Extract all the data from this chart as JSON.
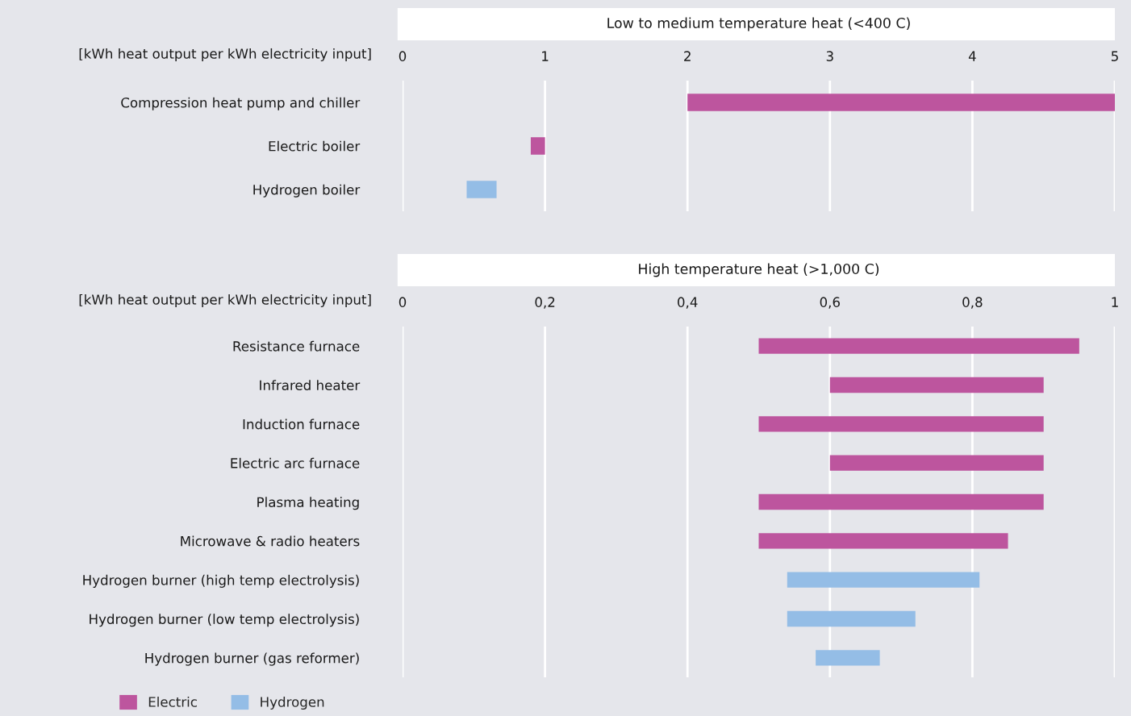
{
  "chart_data": [
    {
      "type": "bar",
      "orientation": "horizontal",
      "title": "Low to medium temperature heat (<400 C)",
      "xlabel": "[kWh heat output per kWh electricity input]",
      "categories": [
        "Compression heat pump and chiller",
        "Electric boiler",
        "Hydrogen boiler"
      ],
      "series": [
        {
          "name": "Electric",
          "color": "#bd559e",
          "values": [
            3,
            0.1,
            null
          ],
          "base": [
            2,
            0.9,
            null
          ]
        },
        {
          "name": "Hydrogen",
          "color": "#94bde6",
          "values": [
            null,
            null,
            0.21
          ],
          "base": [
            null,
            null,
            0.45
          ]
        }
      ],
      "xlim": [
        0,
        5
      ],
      "xticks": [
        0,
        1,
        2,
        3,
        4,
        5
      ],
      "grid": "x",
      "legend": "bottom left"
    },
    {
      "type": "bar",
      "orientation": "horizontal",
      "title": "High temperature heat (>1,000 C)",
      "xlabel": "[kWh heat output per kWh electricity input]",
      "categories": [
        "Resistance furnace",
        "Infrared heater",
        "Induction furnace",
        "Electric arc furnace",
        "Plasma heating",
        "Microwave & radio heaters",
        "Hydrogen burner (high temp electrolysis)",
        "Hydrogen burner (low temp electrolysis)",
        "Hydrogen burner (gas reformer)"
      ],
      "series": [
        {
          "color": "#bd559e",
          "values": [
            0.45,
            0.3,
            0.4,
            0.3,
            0.4,
            0.35,
            null,
            null,
            null
          ],
          "base": [
            0.5,
            0.6,
            0.5,
            0.6,
            0.5,
            0.5,
            null,
            null,
            null
          ]
        },
        {
          "color": "#94bde6",
          "values": [
            null,
            null,
            null,
            null,
            null,
            null,
            0.27,
            0.18,
            0.09
          ],
          "base": [
            null,
            null,
            null,
            null,
            null,
            null,
            0.54,
            0.54,
            0.58
          ]
        }
      ],
      "xlim": [
        0,
        1
      ],
      "xticks": [
        0,
        {
          "value": 0.2,
          "label": "0,2"
        },
        {
          "value": 0.4,
          "label": "0,4"
        },
        {
          "value": 0.6,
          "label": "0,6"
        },
        {
          "value": 0.8,
          "label": "0,8"
        },
        1
      ],
      "grid": "x"
    }
  ]
}
